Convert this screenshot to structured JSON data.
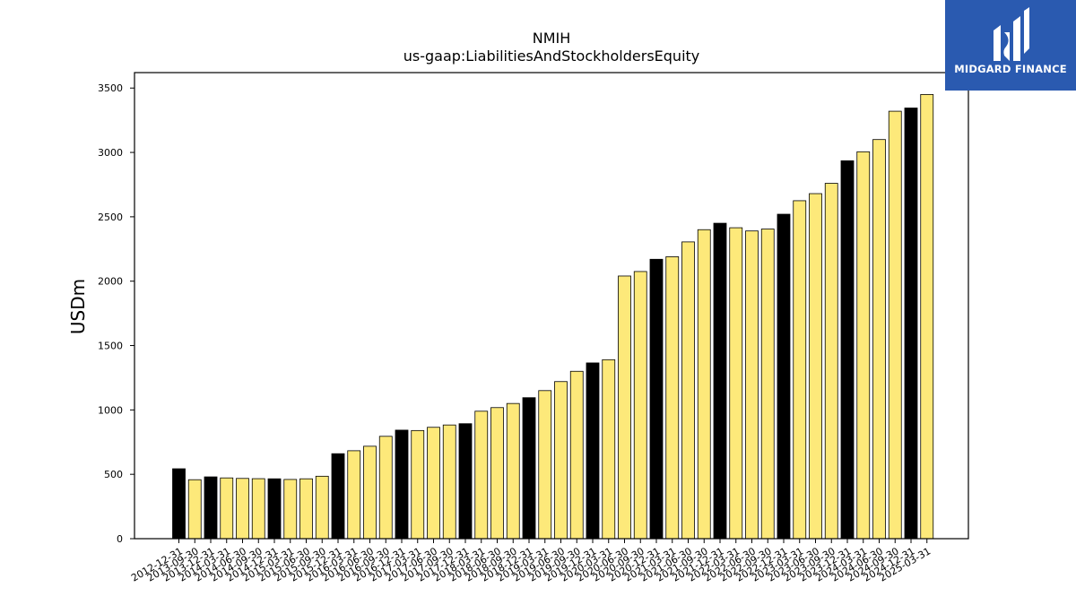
{
  "logo": {
    "text": "MIDGARD FINANCE",
    "icon": "midgard-logo-icon",
    "background": "#2a5ab0"
  },
  "chart_data": {
    "type": "bar",
    "title": "NMIH",
    "subtitle": "us-gaap:LiabilitiesAndStockholdersEquity",
    "xlabel": "",
    "ylabel": "USDm",
    "ylim": [
      0,
      3620
    ],
    "yticks": [
      0,
      500,
      1000,
      1500,
      2000,
      2500,
      3000,
      3500
    ],
    "grid": false,
    "colors": {
      "q4_bar": "#000000",
      "other_bar": "#fde97a",
      "edge": "#000000"
    },
    "categories": [
      "2012-12-31",
      "2013-09-30",
      "2013-12-31",
      "2014-03-31",
      "2014-06-30",
      "2014-09-30",
      "2014-12-31",
      "2015-03-31",
      "2015-06-30",
      "2015-09-30",
      "2015-12-31",
      "2016-03-31",
      "2016-06-30",
      "2016-09-30",
      "2016-12-31",
      "2017-03-31",
      "2017-06-30",
      "2017-09-30",
      "2017-12-31",
      "2018-03-31",
      "2018-06-30",
      "2018-09-30",
      "2018-12-31",
      "2019-03-31",
      "2019-06-30",
      "2019-09-30",
      "2019-12-31",
      "2020-03-31",
      "2020-06-30",
      "2020-09-30",
      "2020-12-31",
      "2021-03-31",
      "2021-06-30",
      "2021-09-30",
      "2021-12-31",
      "2022-03-31",
      "2022-06-30",
      "2022-09-30",
      "2022-12-31",
      "2023-03-31",
      "2023-06-30",
      "2023-09-30",
      "2023-12-31",
      "2024-03-31",
      "2024-06-30",
      "2024-09-30",
      "2024-12-31",
      "2025-03-31"
    ],
    "values": [
      543,
      458,
      480,
      472,
      468,
      466,
      465,
      460,
      465,
      485,
      660,
      683,
      718,
      795,
      843,
      840,
      865,
      883,
      893,
      990,
      1018,
      1050,
      1095,
      1150,
      1220,
      1300,
      1365,
      1390,
      2040,
      2075,
      2170,
      2190,
      2305,
      2400,
      2450,
      2415,
      2390,
      2405,
      2520,
      2625,
      2680,
      2760,
      2935,
      3005,
      3100,
      3320,
      3345,
      3450
    ],
    "highlight": [
      true,
      false,
      true,
      false,
      false,
      false,
      true,
      false,
      false,
      false,
      true,
      false,
      false,
      false,
      true,
      false,
      false,
      false,
      true,
      false,
      false,
      false,
      true,
      false,
      false,
      false,
      true,
      false,
      false,
      false,
      true,
      false,
      false,
      false,
      true,
      false,
      false,
      false,
      true,
      false,
      false,
      false,
      true,
      false,
      false,
      false,
      true,
      false
    ]
  }
}
